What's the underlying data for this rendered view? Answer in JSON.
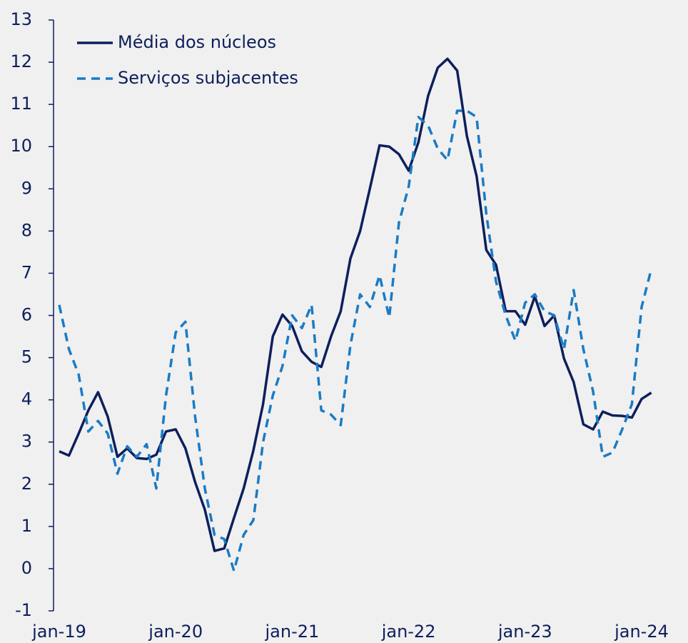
{
  "chart_data": {
    "type": "line",
    "categories": [
      "jan-19",
      null,
      null,
      null,
      null,
      null,
      null,
      null,
      null,
      null,
      null,
      null,
      "jan-20",
      null,
      null,
      null,
      null,
      null,
      null,
      null,
      null,
      null,
      null,
      null,
      "jan-21",
      null,
      null,
      null,
      null,
      null,
      null,
      null,
      null,
      null,
      null,
      null,
      "jan-22",
      null,
      null,
      null,
      null,
      null,
      null,
      null,
      null,
      null,
      null,
      null,
      "jan-23",
      null,
      null,
      null,
      null,
      null,
      null,
      null,
      null,
      null,
      null,
      null,
      "jan-24",
      null
    ],
    "series": [
      {
        "name": "Média dos núcleos",
        "color": "#0d1f5c",
        "dash": false,
        "values": [
          2.78,
          2.68,
          3.2,
          3.75,
          4.18,
          3.6,
          2.65,
          2.85,
          2.62,
          2.6,
          2.7,
          3.25,
          3.3,
          2.85,
          2.05,
          1.4,
          0.42,
          0.48,
          1.2,
          1.9,
          2.8,
          3.9,
          5.5,
          6.02,
          5.75,
          5.15,
          4.9,
          4.78,
          5.5,
          6.1,
          7.35,
          8.0,
          9.0,
          10.03,
          10.0,
          9.82,
          9.43,
          10.1,
          11.2,
          11.87,
          12.08,
          11.8,
          10.25,
          9.3,
          7.55,
          7.2,
          6.1,
          6.1,
          5.78,
          6.45,
          5.75,
          6.0,
          4.98,
          4.42,
          3.42,
          3.3,
          3.72,
          3.63,
          3.62,
          3.58,
          4.02,
          4.17
        ]
      },
      {
        "name": "Serviços subjacentes",
        "color": "#1a7bc4",
        "dash": true,
        "values": [
          6.25,
          5.2,
          4.6,
          3.25,
          3.5,
          3.2,
          2.25,
          2.9,
          2.65,
          2.95,
          1.9,
          4.1,
          5.6,
          5.85,
          3.6,
          1.9,
          0.8,
          0.7,
          -0.05,
          0.8,
          1.15,
          3.0,
          4.1,
          4.8,
          6.0,
          5.7,
          6.25,
          3.75,
          3.65,
          3.4,
          5.3,
          6.5,
          6.2,
          6.95,
          5.95,
          8.2,
          9.05,
          10.7,
          10.5,
          9.95,
          9.68,
          10.85,
          10.85,
          10.7,
          8.4,
          6.8,
          6.0,
          5.4,
          6.3,
          6.5,
          6.1,
          6.0,
          5.2,
          6.6,
          5.2,
          4.2,
          2.65,
          2.75,
          3.3,
          3.9,
          6.2,
          7.1
        ]
      }
    ],
    "ylim": [
      -1,
      13
    ],
    "yticks": [
      -1,
      0,
      1,
      2,
      3,
      4,
      5,
      6,
      7,
      8,
      9,
      10,
      11,
      12,
      13
    ],
    "legend": "upper left"
  }
}
